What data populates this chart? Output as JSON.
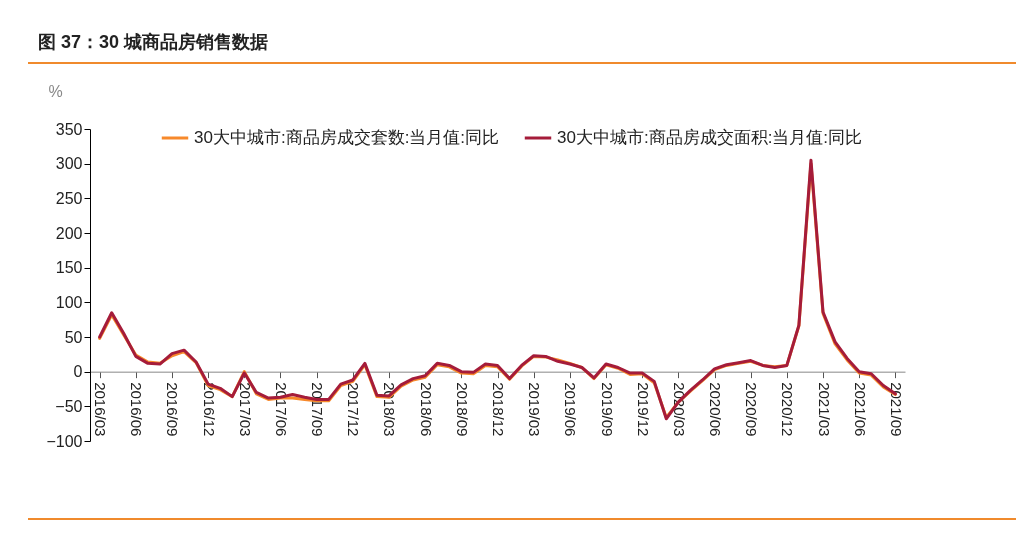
{
  "chart_data": {
    "type": "line",
    "title": "图 37：30 城商品房销售数据",
    "ylabel": "%",
    "categories": [
      "2016/03",
      null,
      null,
      "2016/06",
      null,
      null,
      "2016/09",
      null,
      null,
      "2016/12",
      null,
      null,
      "2017/03",
      null,
      null,
      "2017/06",
      null,
      null,
      "2017/09",
      null,
      null,
      "2017/12",
      null,
      null,
      "2018/03",
      null,
      null,
      "2018/06",
      null,
      null,
      "2018/09",
      null,
      null,
      "2018/12",
      null,
      null,
      "2019/03",
      null,
      null,
      "2019/06",
      null,
      null,
      "2019/09",
      null,
      null,
      "2019/12",
      null,
      null,
      "2020/03",
      null,
      null,
      "2020/06",
      null,
      null,
      "2020/09",
      null,
      null,
      "2020/12",
      null,
      null,
      "2021/03",
      null,
      null,
      "2021/06",
      null,
      null,
      "2021/09"
    ],
    "series": [
      {
        "name": "30大中城市:商品房成交套数:当月值:同比",
        "color": "#f7892b",
        "values": [
          48,
          82,
          53,
          24,
          14,
          12,
          23,
          29,
          13,
          -20,
          -26,
          -36,
          0,
          -32,
          -40,
          -38,
          -38,
          -40,
          -42,
          -42,
          -20,
          -14,
          10,
          -36,
          -37,
          -21,
          -12,
          -8,
          10,
          7,
          -2,
          -3,
          9,
          7,
          -11,
          8,
          22,
          21,
          17,
          12,
          6,
          -10,
          10,
          5,
          -4,
          -3,
          -16,
          -66,
          -44,
          -28,
          -13,
          3,
          9,
          12,
          15,
          9,
          7,
          9,
          66,
          300,
          84,
          40,
          17,
          -2,
          -5,
          -22,
          -33
        ]
      },
      {
        "name": "30大中城市:商品房成交面积:当月值:同比",
        "color": "#a51c3a",
        "values": [
          50,
          85,
          55,
          22,
          12,
          11,
          26,
          31,
          14,
          -18,
          -24,
          -36,
          -2,
          -30,
          -38,
          -37,
          -33,
          -37,
          -40,
          -40,
          -18,
          -12,
          12,
          -34,
          -35,
          -19,
          -10,
          -6,
          12,
          9,
          0,
          -1,
          11,
          9,
          -10,
          9,
          23,
          22,
          15,
          11,
          6,
          -9,
          11,
          6,
          -2,
          -2,
          -14,
          -68,
          -44,
          -27,
          -12,
          4,
          10,
          13,
          16,
          9,
          6,
          9,
          67,
          305,
          86,
          43,
          19,
          0,
          -3,
          -20,
          -32
        ]
      }
    ],
    "ylim": [
      -100,
      350
    ],
    "yticks": [
      -100,
      -50,
      0,
      50,
      100,
      150,
      200,
      250,
      300,
      350
    ],
    "grid": false,
    "legend": "top",
    "line_style": "solid",
    "marker": "none"
  }
}
